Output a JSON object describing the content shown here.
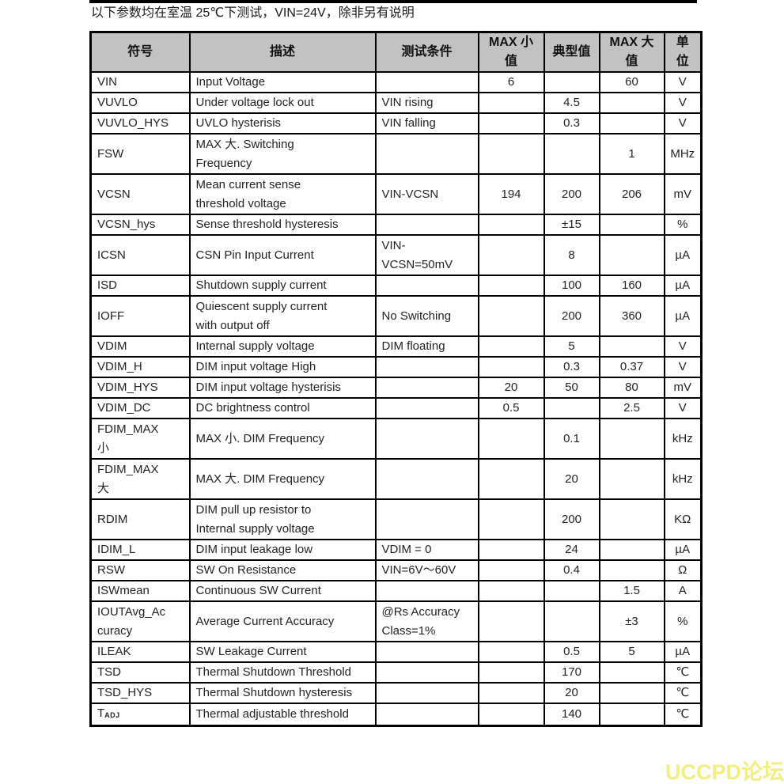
{
  "page": {
    "intro": "以下参数均在室温 25℃下测试，VIN=24V，除非另有说明",
    "watermark": "UCCPD论坛"
  },
  "colors": {
    "header_bg": "#c2c2c2",
    "border": "#000000",
    "watermark": "#f2ee7f"
  },
  "table": {
    "headers": [
      "符号",
      "描述",
      "测试条件",
      "MAX 小\n值",
      "典型值",
      "MAX 大\n值",
      "单\n位"
    ],
    "rows": [
      {
        "symbol": "VIN",
        "desc": "Input Voltage",
        "cond": "",
        "min": "6",
        "typ": "",
        "max": "60",
        "unit": "V",
        "tall": false
      },
      {
        "symbol": "VUVLO",
        "desc": "Under voltage lock out",
        "cond": "VIN rising",
        "min": "",
        "typ": "4.5",
        "max": "",
        "unit": "V",
        "tall": false
      },
      {
        "symbol": "VUVLO_HYS",
        "desc": "UVLO hysterisis",
        "cond": "VIN falling",
        "min": "",
        "typ": "0.3",
        "max": "",
        "unit": "V",
        "tall": false
      },
      {
        "symbol": "FSW",
        "desc": "MAX 大. Switching\nFrequency",
        "cond": "",
        "min": "",
        "typ": "",
        "max": "1",
        "unit": "MHz",
        "tall": true
      },
      {
        "symbol": "VCSN",
        "desc": "Mean current sense\nthreshold voltage",
        "cond": "VIN-VCSN",
        "min": "194",
        "typ": "200",
        "max": "206",
        "unit": "mV",
        "tall": true
      },
      {
        "symbol": "VCSN_hys",
        "desc": "Sense threshold hysteresis",
        "cond": "",
        "min": "",
        "typ": "±15",
        "max": "",
        "unit": "%",
        "tall": false
      },
      {
        "symbol": "ICSN",
        "desc": "CSN Pin Input Current",
        "cond": "VIN-\nVCSN=50mV",
        "min": "",
        "typ": "8",
        "max": "",
        "unit": "µA",
        "tall": true
      },
      {
        "symbol": "ISD",
        "desc": "Shutdown supply current",
        "cond": "",
        "min": "",
        "typ": "100",
        "max": "160",
        "unit": "µA",
        "tall": false
      },
      {
        "symbol": "IOFF",
        "desc": "Quiescent supply current\nwith output off",
        "cond": "No Switching",
        "min": "",
        "typ": "200",
        "max": "360",
        "unit": "µA",
        "tall": true
      },
      {
        "symbol": "VDIM",
        "desc": "Internal supply voltage",
        "cond": "DIM floating",
        "min": "",
        "typ": "5",
        "max": "",
        "unit": "V",
        "tall": false
      },
      {
        "symbol": "VDIM_H",
        "desc": "DIM input voltage High",
        "cond": "",
        "min": "",
        "typ": "0.3",
        "max": "0.37",
        "unit": "V",
        "tall": false
      },
      {
        "symbol": "VDIM_HYS",
        "desc": "DIM input voltage hysterisis",
        "cond": "",
        "min": "20",
        "typ": "50",
        "max": "80",
        "unit": "mV",
        "tall": false
      },
      {
        "symbol": "VDIM_DC",
        "desc": "DC brightness control",
        "cond": "",
        "min": "0.5",
        "typ": "",
        "max": "2.5",
        "unit": "V",
        "tall": false
      },
      {
        "symbol": "FDIM_MAX\n小",
        "desc": "MAX 小. DIM Frequency",
        "cond": "",
        "min": "",
        "typ": "0.1",
        "max": "",
        "unit": "kHz",
        "tall": true
      },
      {
        "symbol": "FDIM_MAX\n大",
        "desc": "MAX 大. DIM Frequency",
        "cond": "",
        "min": "",
        "typ": "20",
        "max": "",
        "unit": "kHz",
        "tall": true
      },
      {
        "symbol": "RDIM",
        "desc": "DIM pull up resistor to\nInternal supply voltage",
        "cond": "",
        "min": "",
        "typ": "200",
        "max": "",
        "unit": "KΩ",
        "tall": true
      },
      {
        "symbol": "IDIM_L",
        "desc": "DIM input leakage low",
        "cond": "VDIM = 0",
        "min": "",
        "typ": "24",
        "max": "",
        "unit": "µA",
        "tall": false
      },
      {
        "symbol": "RSW",
        "desc": "SW On Resistance",
        "cond": "VIN=6V～60V",
        "min": "",
        "typ": "0.4",
        "max": "",
        "unit": "Ω",
        "tall": false
      },
      {
        "symbol": "ISWmean",
        "desc": "Continuous SW Current",
        "cond": "",
        "min": "",
        "typ": "",
        "max": "1.5",
        "unit": "A",
        "tall": false
      },
      {
        "symbol": "IOUTAvg_Ac\ncuracy",
        "desc": "Average Current Accuracy",
        "cond": "@Rs Accuracy\nClass=1%",
        "min": "",
        "typ": "",
        "max": "±3",
        "unit": "%",
        "tall": true
      },
      {
        "symbol": "ILEAK",
        "desc": "SW Leakage Current",
        "cond": "",
        "min": "",
        "typ": "0.5",
        "max": "5",
        "unit": "µA",
        "tall": false
      },
      {
        "symbol": "TSD",
        "desc": "Thermal Shutdown Threshold",
        "cond": "",
        "min": "",
        "typ": "170",
        "max": "",
        "unit": "℃",
        "tall": false
      },
      {
        "symbol": "TSD_HYS",
        "desc": "Thermal Shutdown hysteresis",
        "cond": "",
        "min": "",
        "typ": "20",
        "max": "",
        "unit": "℃",
        "tall": false
      },
      {
        "symbol": "T",
        "symbol_sub": "ADJ",
        "desc": "Thermal adjustable threshold",
        "cond": "",
        "min": "",
        "typ": "140",
        "max": "",
        "unit": "℃",
        "tall": false
      }
    ]
  }
}
